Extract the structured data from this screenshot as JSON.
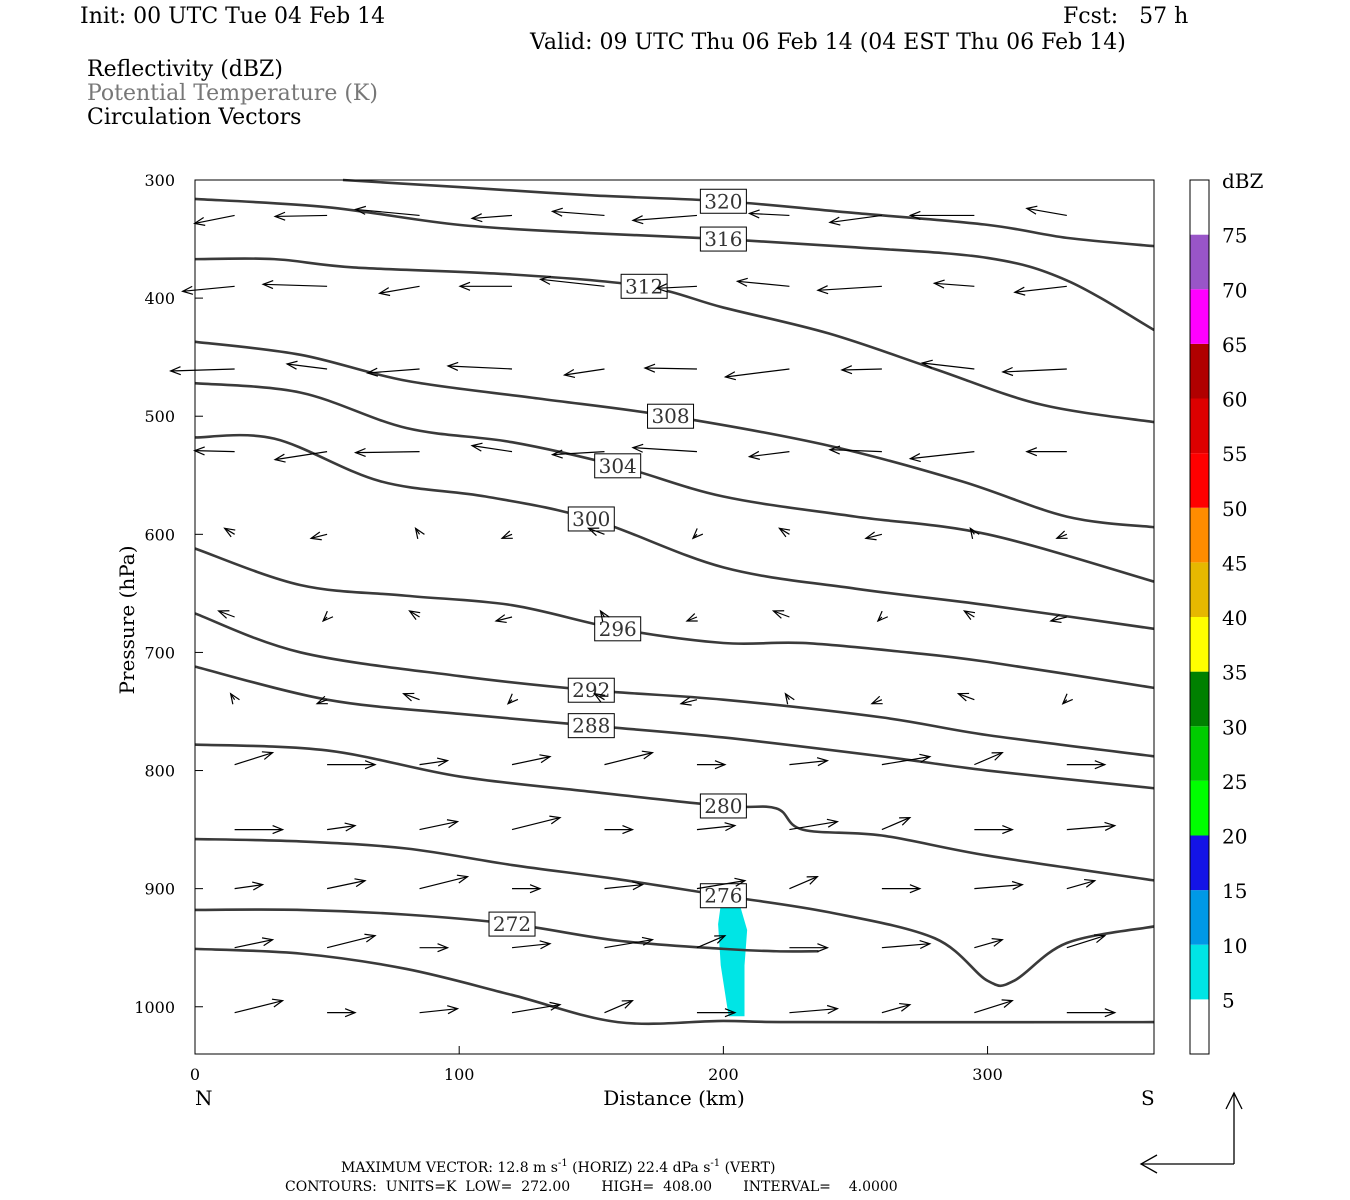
{
  "header": {
    "init": "Init: 00 UTC Tue 04 Feb 14",
    "fcst": "Fcst:   57 h",
    "valid": "Valid: 09 UTC Thu 06 Feb 14 (04 EST Thu 06 Feb 14)",
    "fields": [
      {
        "label": "Reflectivity (dBZ)",
        "color": "#000000"
      },
      {
        "label": "Potential Temperature (K)",
        "color": "#777777"
      },
      {
        "label": "Circulation Vectors",
        "color": "#000000"
      }
    ]
  },
  "footer": {
    "vector_prefix": "MAXIMUM VECTOR:  12.8 m s",
    "vector_sup1": "-1",
    "vector_mid": " (HORIZ)        22.4 dPa s",
    "vector_sup2": "-1",
    "vector_suffix": " (VERT)",
    "contours": "CONTOURS:  UNITS=K  LOW=  272.00       HIGH=  408.00       INTERVAL=    4.0000"
  },
  "chart_data": {
    "type": "cross-section",
    "xlabel": "Distance (km)",
    "ylabel": "Pressure (hPa)",
    "xlim": [
      0,
      363
    ],
    "ylim": [
      1040,
      300
    ],
    "x_ticks": [
      0,
      100,
      200,
      300
    ],
    "y_ticks": [
      300,
      400,
      500,
      600,
      700,
      800,
      900,
      1000
    ],
    "left_end_label": "N",
    "right_end_label": "S",
    "grid": false,
    "colorbar": {
      "title": "dBZ",
      "levels": [
        5,
        10,
        15,
        20,
        25,
        30,
        35,
        40,
        45,
        50,
        55,
        60,
        65,
        70,
        75
      ],
      "colors": [
        "#00e5e5",
        "#0099e6",
        "#1414e6",
        "#00ff00",
        "#00cc00",
        "#008000",
        "#ffff00",
        "#e6b800",
        "#ff8c00",
        "#ff0000",
        "#dd0000",
        "#b00000",
        "#ff00ff",
        "#9955c8",
        "#ffffff"
      ]
    },
    "theta_contours": [
      {
        "label": "272",
        "points": [
          [
            0,
            918
          ],
          [
            40,
            918
          ],
          [
            80,
            922
          ],
          [
            120,
            930
          ],
          [
            160,
            944
          ],
          [
            200,
            951
          ],
          [
            220,
            953
          ],
          [
            236,
            953
          ]
        ]
      },
      {
        "label": "276",
        "points": [
          [
            0,
            858
          ],
          [
            40,
            860
          ],
          [
            80,
            866
          ],
          [
            120,
            880
          ],
          [
            160,
            892
          ],
          [
            200,
            906
          ],
          [
            240,
            920
          ],
          [
            280,
            942
          ],
          [
            300,
            978
          ],
          [
            310,
            978
          ],
          [
            330,
            946
          ],
          [
            363,
            932
          ]
        ]
      },
      {
        "label": "280",
        "points": [
          [
            0,
            778
          ],
          [
            50,
            783
          ],
          [
            100,
            805
          ],
          [
            150,
            818
          ],
          [
            200,
            830
          ],
          [
            220,
            832
          ],
          [
            230,
            850
          ],
          [
            260,
            855
          ],
          [
            300,
            872
          ],
          [
            363,
            893
          ]
        ]
      },
      {
        "label": "288",
        "points": [
          [
            0,
            712
          ],
          [
            50,
            740
          ],
          [
            100,
            752
          ],
          [
            150,
            762
          ],
          [
            200,
            772
          ],
          [
            260,
            788
          ],
          [
            300,
            800
          ],
          [
            363,
            815
          ]
        ]
      },
      {
        "label": "292",
        "points": [
          [
            0,
            667
          ],
          [
            40,
            700
          ],
          [
            100,
            720
          ],
          [
            150,
            732
          ],
          [
            200,
            740
          ],
          [
            260,
            755
          ],
          [
            300,
            770
          ],
          [
            363,
            788
          ]
        ]
      },
      {
        "label": "296",
        "points": [
          [
            0,
            612
          ],
          [
            40,
            643
          ],
          [
            80,
            652
          ],
          [
            120,
            660
          ],
          [
            160,
            680
          ],
          [
            200,
            692
          ],
          [
            230,
            692
          ],
          [
            270,
            700
          ],
          [
            300,
            708
          ],
          [
            363,
            730
          ]
        ]
      },
      {
        "label": "300",
        "points": [
          [
            0,
            518
          ],
          [
            30,
            519
          ],
          [
            70,
            555
          ],
          [
            110,
            568
          ],
          [
            150,
            587
          ],
          [
            200,
            628
          ],
          [
            250,
            646
          ],
          [
            300,
            660
          ],
          [
            363,
            680
          ]
        ]
      },
      {
        "label": "304",
        "points": [
          [
            0,
            472
          ],
          [
            40,
            480
          ],
          [
            80,
            510
          ],
          [
            120,
            522
          ],
          [
            160,
            542
          ],
          [
            200,
            568
          ],
          [
            250,
            585
          ],
          [
            300,
            600
          ],
          [
            363,
            640
          ]
        ]
      },
      {
        "label": "308",
        "points": [
          [
            0,
            437
          ],
          [
            40,
            448
          ],
          [
            80,
            470
          ],
          [
            130,
            485
          ],
          [
            180,
            500
          ],
          [
            240,
            525
          ],
          [
            290,
            555
          ],
          [
            330,
            585
          ],
          [
            363,
            594
          ]
        ]
      },
      {
        "label": "312",
        "points": [
          [
            0,
            367
          ],
          [
            30,
            367
          ],
          [
            60,
            374
          ],
          [
            120,
            380
          ],
          [
            170,
            390
          ],
          [
            200,
            408
          ],
          [
            240,
            430
          ],
          [
            280,
            460
          ],
          [
            320,
            490
          ],
          [
            363,
            505
          ]
        ]
      },
      {
        "label": "316",
        "points": [
          [
            0,
            316
          ],
          [
            50,
            323
          ],
          [
            100,
            338
          ],
          [
            150,
            345
          ],
          [
            200,
            350
          ],
          [
            250,
            357
          ],
          [
            300,
            366
          ],
          [
            330,
            385
          ],
          [
            363,
            427
          ]
        ]
      },
      {
        "label": "320",
        "points": [
          [
            56,
            300
          ],
          [
            100,
            306
          ],
          [
            150,
            313
          ],
          [
            200,
            318
          ],
          [
            250,
            328
          ],
          [
            300,
            338
          ],
          [
            330,
            349
          ],
          [
            363,
            356
          ]
        ]
      },
      {
        "label": "",
        "points": [
          [
            0,
            951
          ],
          [
            40,
            955
          ],
          [
            80,
            968
          ],
          [
            120,
            990
          ],
          [
            160,
            1013
          ],
          [
            200,
            1012
          ],
          [
            230,
            1013
          ],
          [
            363,
            1013
          ]
        ]
      }
    ],
    "reflectivity_areas": [
      {
        "value": 5,
        "polygon": [
          [
            200,
            898
          ],
          [
            206,
            912
          ],
          [
            209,
            935
          ],
          [
            208,
            965
          ],
          [
            208,
            1008
          ],
          [
            202,
            1008
          ],
          [
            199,
            965
          ],
          [
            198,
            930
          ]
        ]
      }
    ]
  }
}
